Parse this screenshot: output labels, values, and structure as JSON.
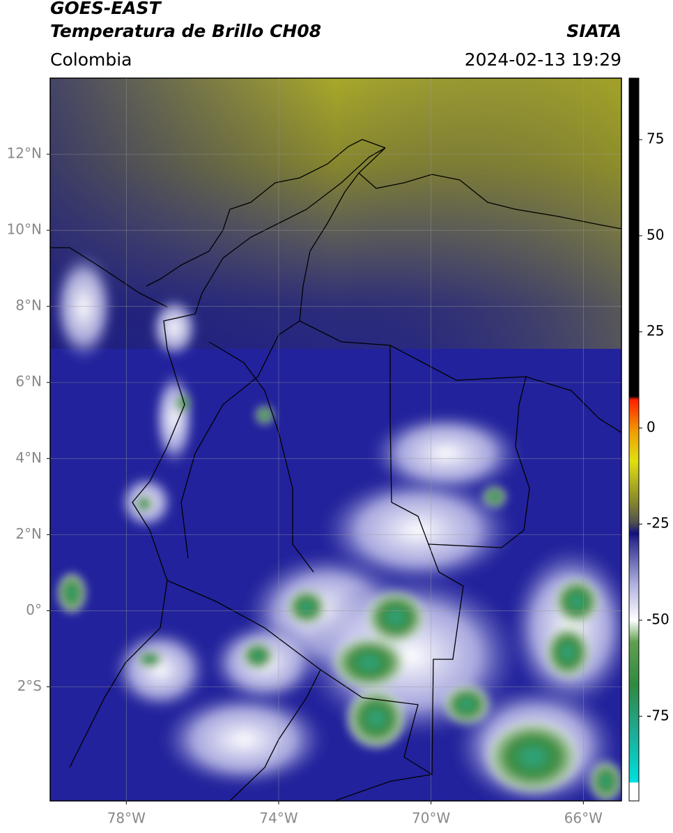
{
  "header": {
    "satellite": "GOES-EAST",
    "product": "Temperatura de Brillo CH08",
    "region": "Colombia",
    "source": "SIATA",
    "datetime": "2024-02-13 19:29"
  },
  "map": {
    "xlim": [
      -80,
      -65
    ],
    "ylim": [
      -5,
      14
    ],
    "xticks": [
      {
        "value": -78,
        "label": "78°W"
      },
      {
        "value": -74,
        "label": "74°W"
      },
      {
        "value": -70,
        "label": "70°W"
      },
      {
        "value": -66,
        "label": "66°W"
      }
    ],
    "yticks": [
      {
        "value": 12,
        "label": "12°N"
      },
      {
        "value": 10,
        "label": "10°N"
      },
      {
        "value": 8,
        "label": "8°N"
      },
      {
        "value": 6,
        "label": "6°N"
      },
      {
        "value": 4,
        "label": "4°N"
      },
      {
        "value": 2,
        "label": "2°N"
      },
      {
        "value": 0,
        "label": "0°"
      },
      {
        "value": -2,
        "label": "2°S"
      }
    ],
    "grid": true
  },
  "colorbar": {
    "lim": [
      -97,
      91
    ],
    "ticks": [
      75,
      50,
      25,
      0,
      -25,
      -50,
      -75
    ]
  }
}
